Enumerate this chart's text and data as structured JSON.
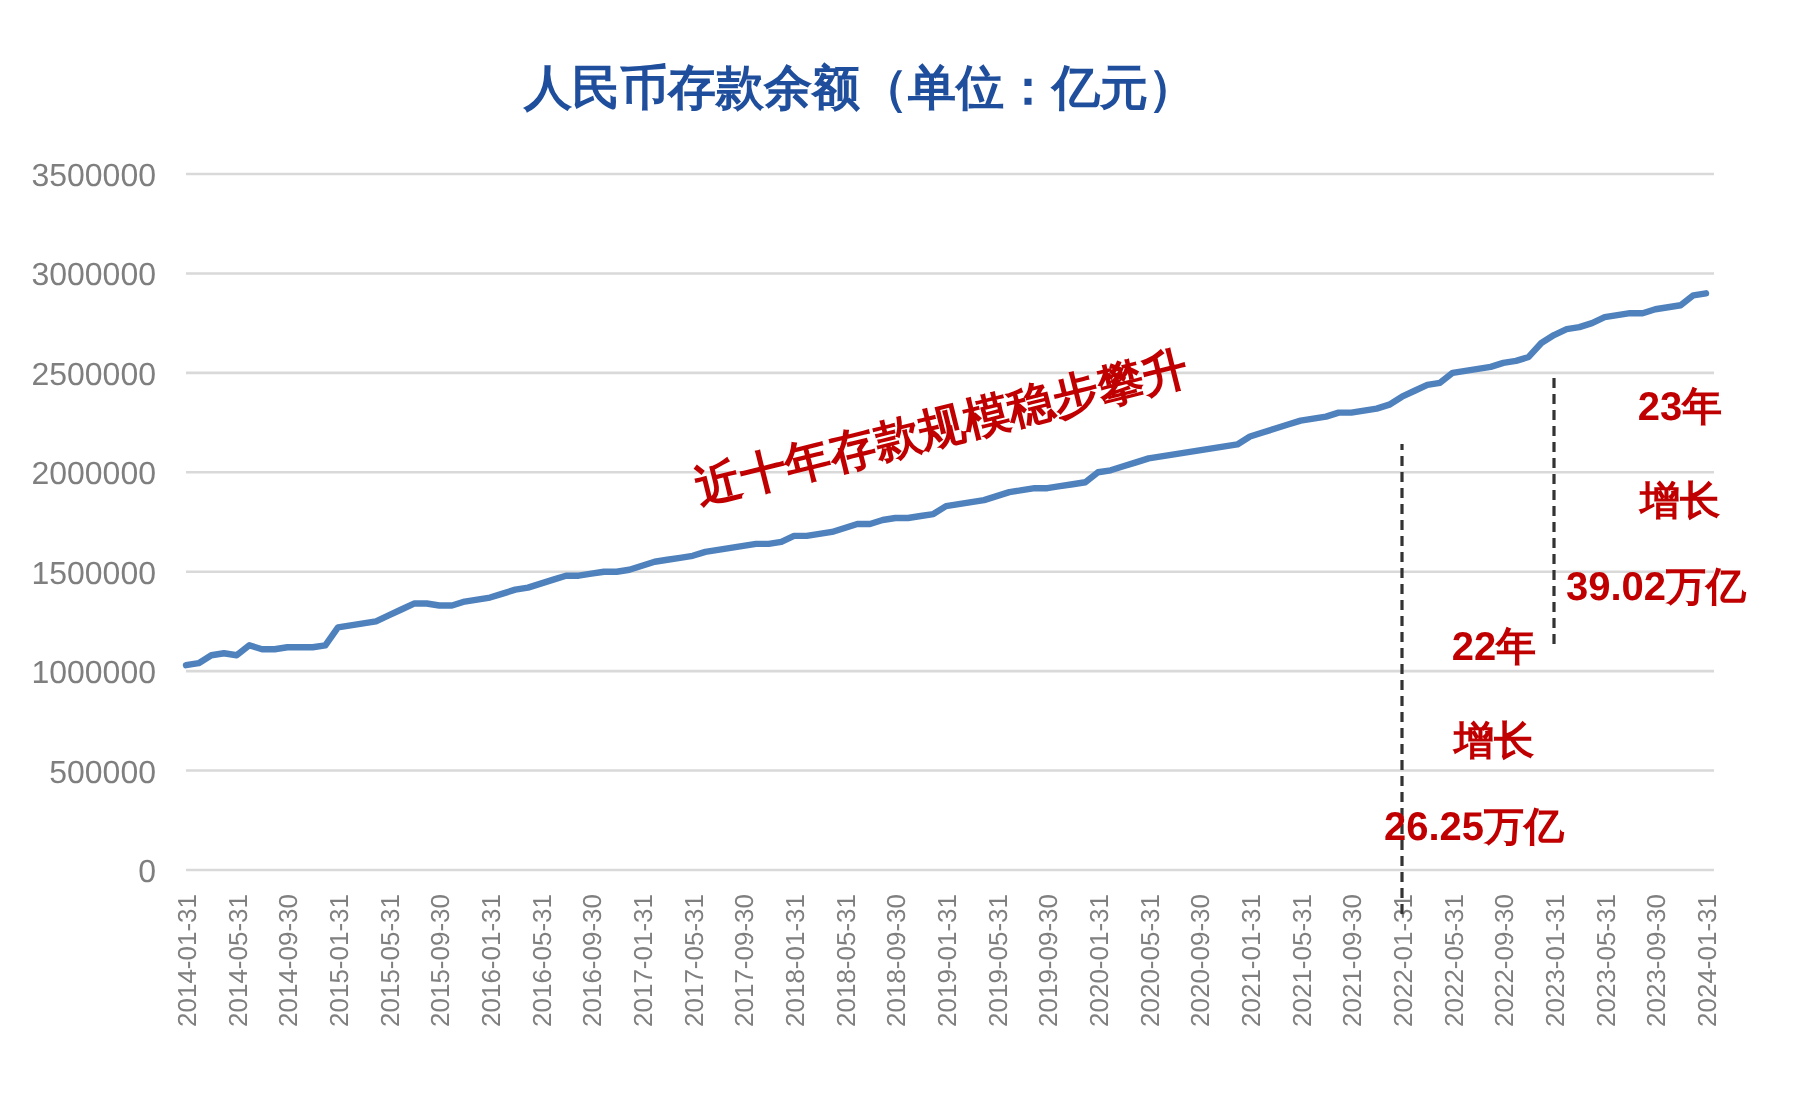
{
  "chart_data": {
    "type": "line",
    "title": "人民币存款余额（单位：亿元）",
    "categories": [
      "2014-01-31",
      null,
      null,
      null,
      "2014-05-31",
      null,
      null,
      null,
      "2014-09-30",
      null,
      null,
      null,
      "2015-01-31",
      null,
      null,
      null,
      "2015-05-31",
      null,
      null,
      null,
      "2015-09-30",
      null,
      null,
      null,
      "2016-01-31",
      null,
      null,
      null,
      "2016-05-31",
      null,
      null,
      null,
      "2016-09-30",
      null,
      null,
      null,
      "2017-01-31",
      null,
      null,
      null,
      "2017-05-31",
      null,
      null,
      null,
      "2017-09-30",
      null,
      null,
      null,
      "2018-01-31",
      null,
      null,
      null,
      "2018-05-31",
      null,
      null,
      null,
      "2018-09-30",
      null,
      null,
      null,
      "2019-01-31",
      null,
      null,
      null,
      "2019-05-31",
      null,
      null,
      null,
      "2019-09-30",
      null,
      null,
      null,
      "2020-01-31",
      null,
      null,
      null,
      "2020-05-31",
      null,
      null,
      null,
      "2020-09-30",
      null,
      null,
      null,
      "2021-01-31",
      null,
      null,
      null,
      "2021-05-31",
      null,
      null,
      null,
      "2021-09-30",
      null,
      null,
      null,
      "2022-01-31",
      null,
      null,
      null,
      "2022-05-31",
      null,
      null,
      null,
      "2022-09-30",
      null,
      null,
      null,
      "2023-01-31",
      null,
      null,
      null,
      "2023-05-31",
      null,
      null,
      null,
      "2023-09-30",
      null,
      null,
      null,
      "2024-01-31"
    ],
    "series": [
      {
        "color": "#4f81bd",
        "values": [
          1030000,
          1040000,
          1080000,
          1090000,
          1080000,
          1130000,
          1110000,
          1110000,
          1120000,
          1120000,
          1120000,
          1130000,
          1220000,
          1230000,
          1240000,
          1250000,
          1280000,
          1310000,
          1340000,
          1340000,
          1330000,
          1330000,
          1350000,
          1360000,
          1370000,
          1390000,
          1410000,
          1420000,
          1440000,
          1460000,
          1480000,
          1480000,
          1490000,
          1500000,
          1500000,
          1510000,
          1530000,
          1550000,
          1560000,
          1570000,
          1580000,
          1600000,
          1610000,
          1620000,
          1630000,
          1640000,
          1640000,
          1650000,
          1680000,
          1680000,
          1690000,
          1700000,
          1720000,
          1740000,
          1740000,
          1760000,
          1770000,
          1770000,
          1780000,
          1790000,
          1830000,
          1840000,
          1850000,
          1860000,
          1880000,
          1900000,
          1910000,
          1920000,
          1920000,
          1930000,
          1940000,
          1950000,
          2000000,
          2010000,
          2030000,
          2050000,
          2070000,
          2080000,
          2090000,
          2100000,
          2110000,
          2120000,
          2130000,
          2140000,
          2180000,
          2200000,
          2220000,
          2240000,
          2260000,
          2270000,
          2280000,
          2300000,
          2300000,
          2310000,
          2320000,
          2340000,
          2380000,
          2410000,
          2440000,
          2450000,
          2500000,
          2510000,
          2520000,
          2530000,
          2550000,
          2560000,
          2580000,
          2650000,
          2690000,
          2720000,
          2730000,
          2750000,
          2780000,
          2790000,
          2800000,
          2800000,
          2820000,
          2830000,
          2840000,
          2890000,
          2900000
        ]
      }
    ],
    "ylim": [
      0,
      3500000
    ],
    "yticks": [
      0,
      500000,
      1000000,
      1500000,
      2000000,
      2500000,
      3000000,
      3500000
    ],
    "grid": "y",
    "ref_lines": [
      {
        "axis": "x",
        "value": "2022-01-31",
        "color": "#333333",
        "line_style": "dashed"
      },
      {
        "axis": "x",
        "value": "2023-01-31",
        "color": "#333333",
        "line_style": "dashed"
      }
    ],
    "annotations": [
      "近十年存款规模稳步攀升",
      "22年",
      "增长",
      "26.25万亿",
      "23年",
      "增长",
      "39.02万亿"
    ]
  }
}
